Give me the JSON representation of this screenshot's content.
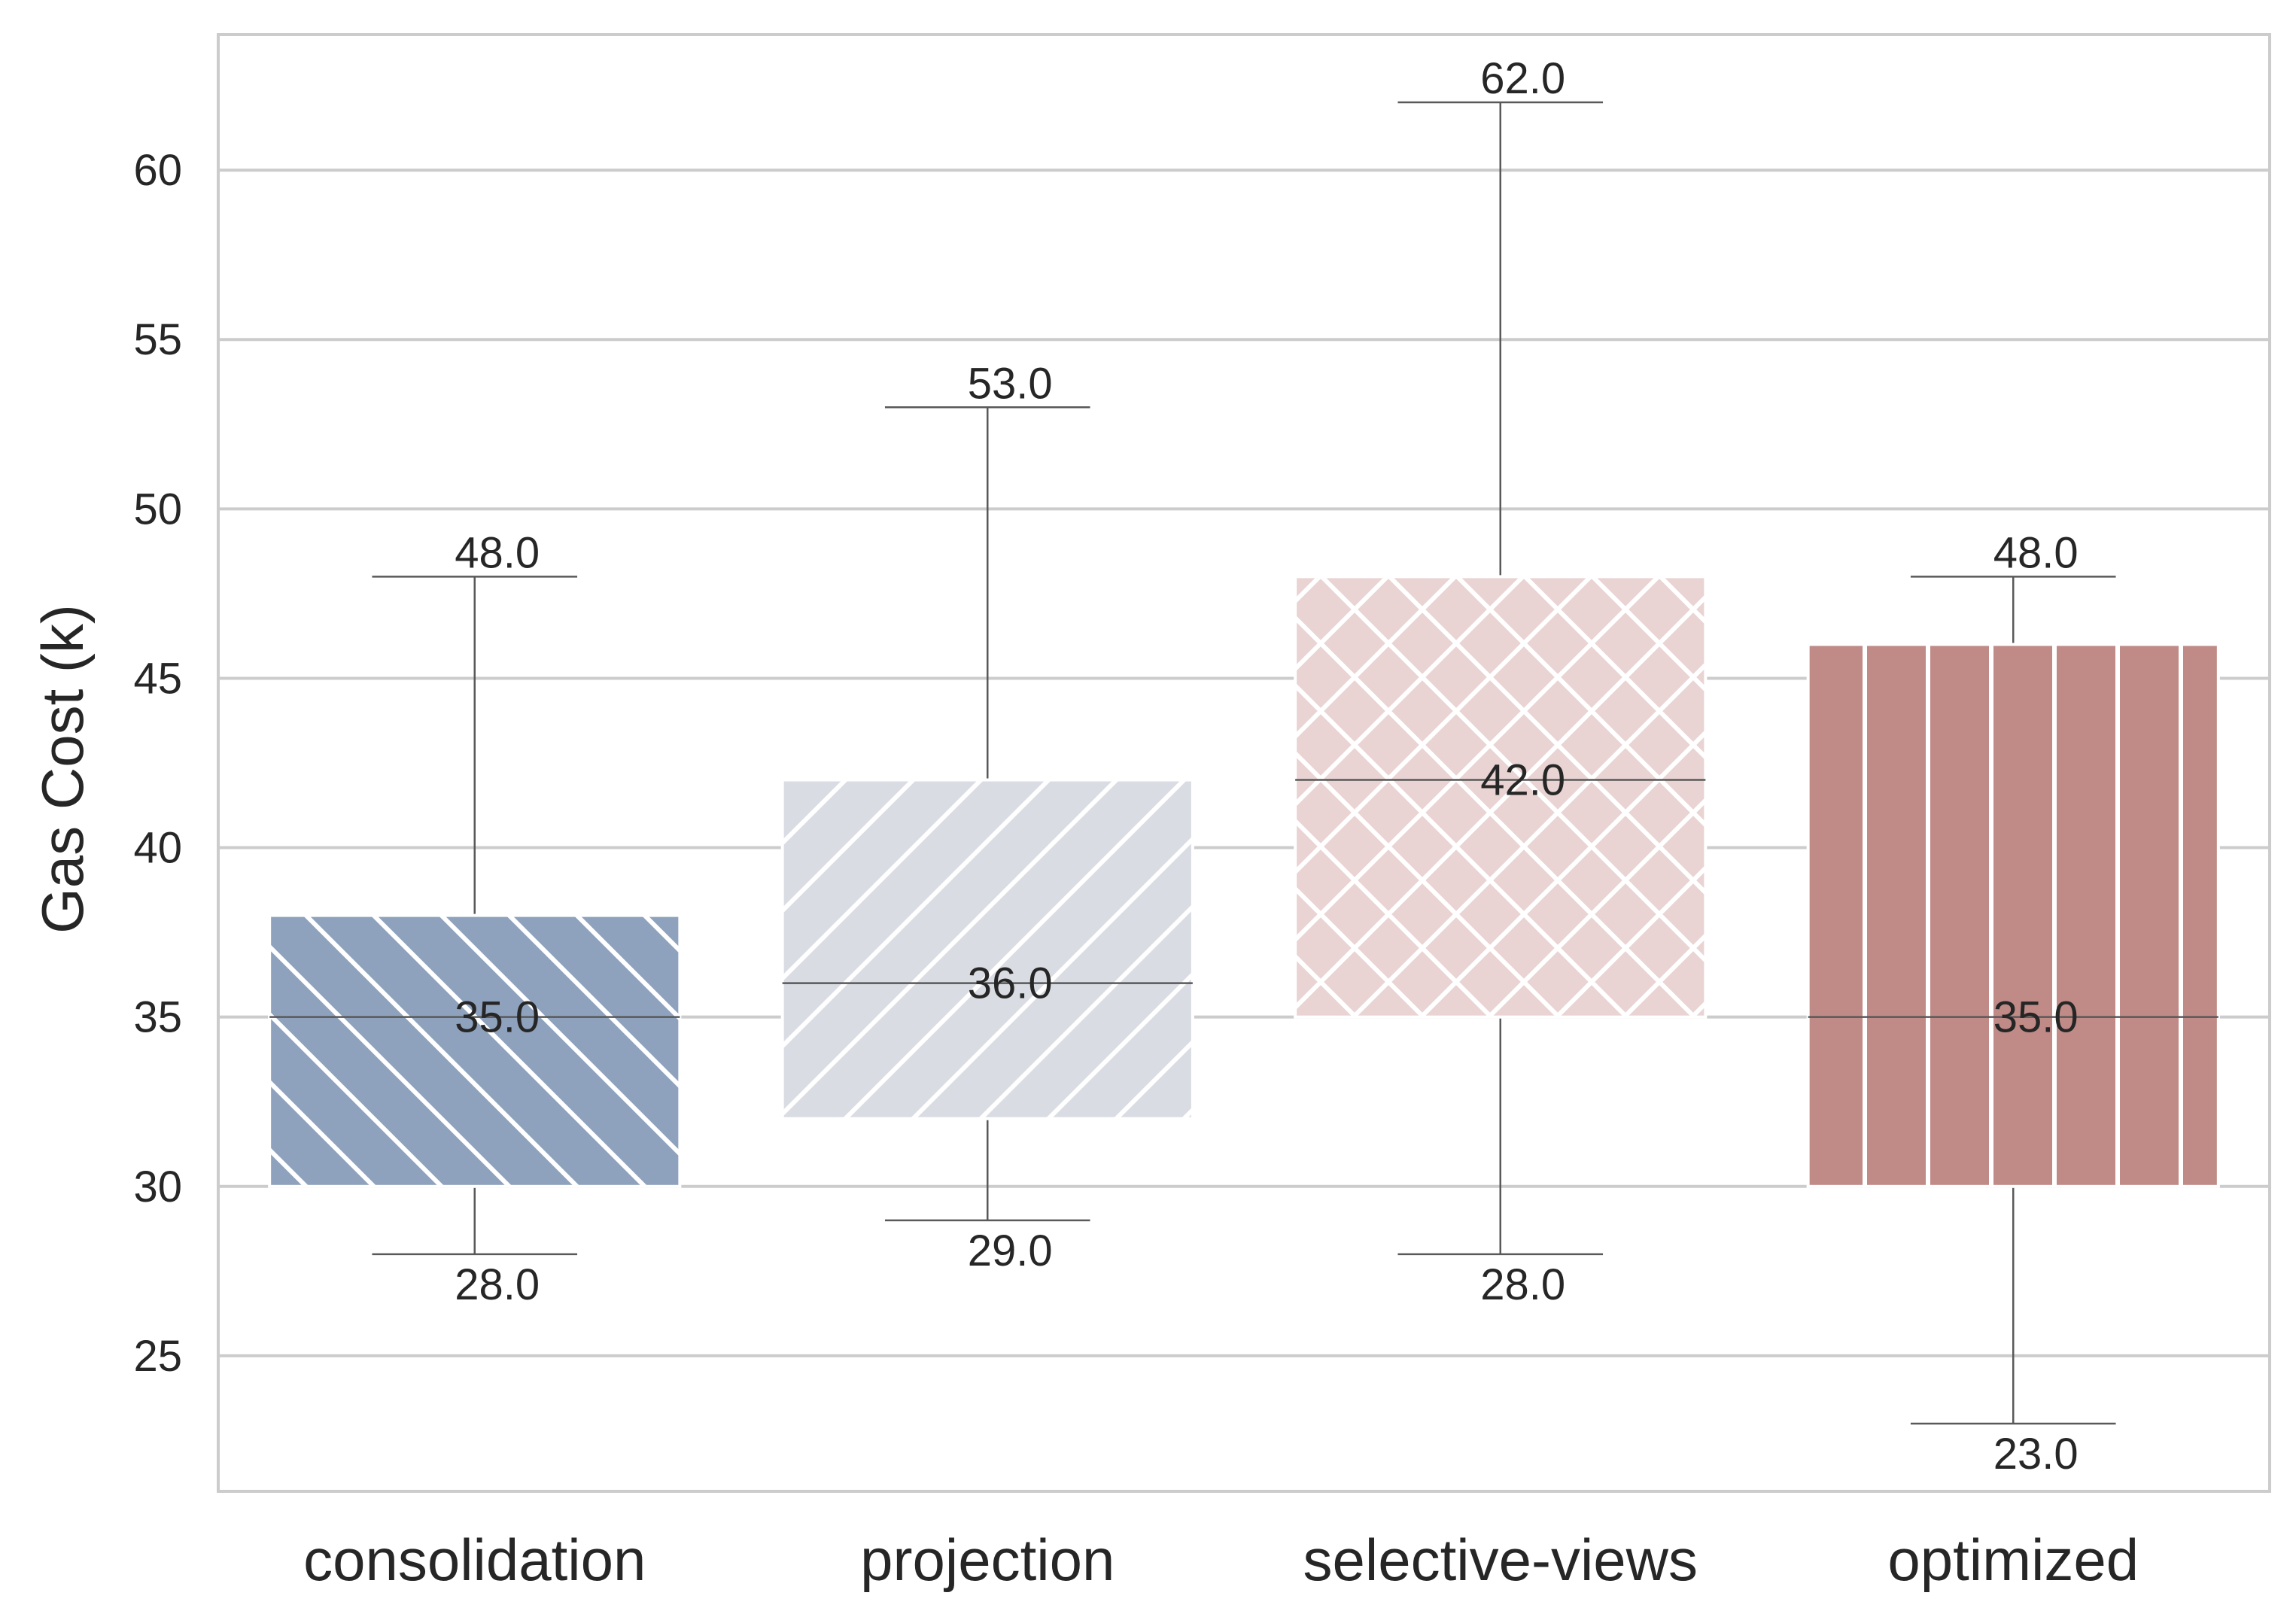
{
  "chart_data": {
    "type": "box",
    "title": "",
    "xlabel": "",
    "ylabel": "Gas Cost (k)",
    "ylim": [
      21,
      64
    ],
    "yticks": [
      25,
      30,
      35,
      40,
      45,
      50,
      55,
      60
    ],
    "grid": "horizontal",
    "categories": [
      "consolidation",
      "projection",
      "selective-views",
      "optimized"
    ],
    "series": [
      {
        "category": "consolidation",
        "min": 28.0,
        "q1": 30,
        "median": 35.0,
        "q3": 38,
        "max": 48.0,
        "labels": {
          "min": "28.0",
          "median": "35.0",
          "max": "48.0"
        },
        "color": "#8fa2bd",
        "hatch": "backslash"
      },
      {
        "category": "projection",
        "min": 29.0,
        "q1": 32,
        "median": 36.0,
        "q3": 42,
        "max": 53.0,
        "labels": {
          "min": "29.0",
          "median": "36.0",
          "max": "53.0"
        },
        "color": "#d9dce3",
        "hatch": "slash"
      },
      {
        "category": "selective-views",
        "min": 28.0,
        "q1": 35,
        "median": 42.0,
        "q3": 48,
        "max": 62.0,
        "labels": {
          "min": "28.0",
          "median": "42.0",
          "max": "62.0"
        },
        "color": "#e9d3d3",
        "hatch": "cross"
      },
      {
        "category": "optimized",
        "min": 23.0,
        "q1": 30,
        "median": 35.0,
        "q3": 46,
        "max": 48.0,
        "labels": {
          "min": "23.0",
          "median": "35.0",
          "max": "48.0"
        },
        "color": "#c08b87",
        "hatch": "vertical"
      }
    ],
    "colors": {
      "grid": "#cccccc",
      "spine": "#cccccc",
      "whisker": "#595959",
      "hatch": "#ffffff"
    }
  }
}
